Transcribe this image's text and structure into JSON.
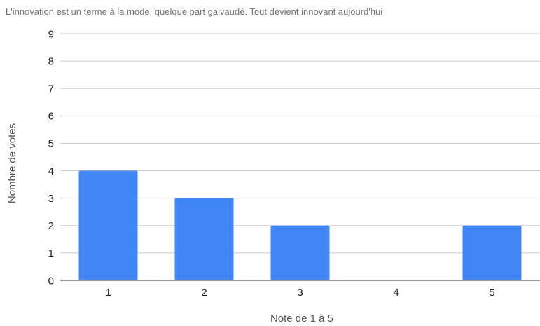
{
  "chart_data": {
    "type": "bar",
    "title": "L'innovation est un terme à la mode, quelque part galvaudé. Tout devient innovant aujourd'hui",
    "xlabel": "Note de 1 à 5",
    "ylabel": "Nombre de votes",
    "categories": [
      "1",
      "2",
      "3",
      "4",
      "5"
    ],
    "values": [
      4,
      3,
      2,
      0,
      2
    ],
    "ylim": [
      0,
      9
    ],
    "yticks": [
      0,
      1,
      2,
      3,
      4,
      5,
      6,
      7,
      8,
      9
    ],
    "grid": true,
    "legend": "none",
    "colors": {
      "bar": "#4285f4",
      "grid": "#cccccc",
      "axis": "#333333",
      "title": "#757575",
      "label": "#222222",
      "axis_title": "#555555"
    }
  }
}
